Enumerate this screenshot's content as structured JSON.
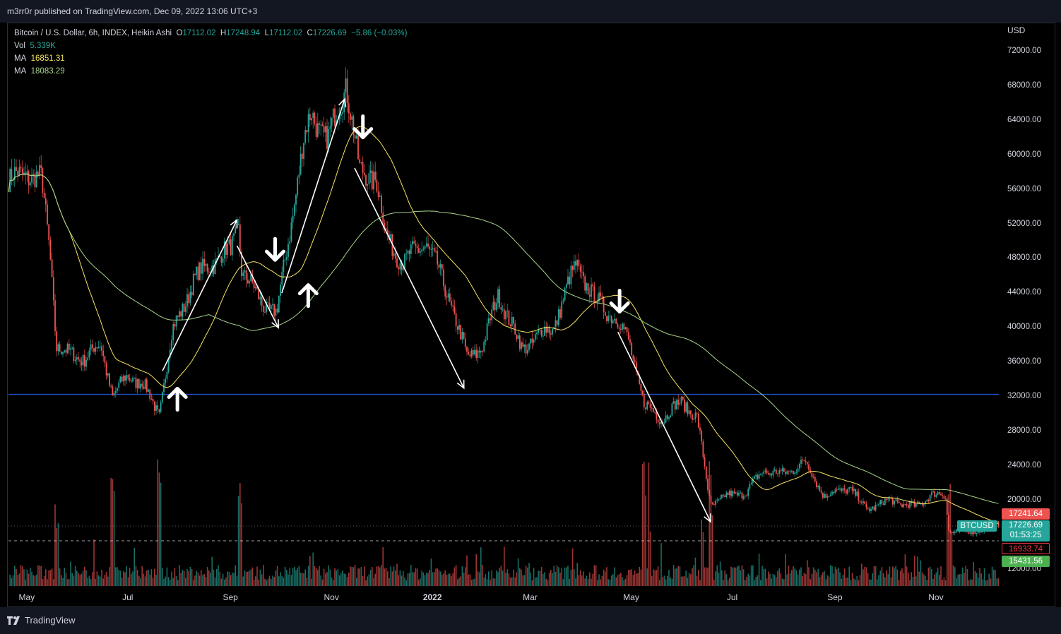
{
  "header": {
    "published": "m3rr0r published on TradingView.com, Dec 09, 2022 13:06 UTC+3"
  },
  "legend": {
    "symbol": "Bitcoin / U.S. Dollar, 6h, INDEX, Heikin Ashi",
    "o_label": "O",
    "o_value": "17112.02",
    "h_label": "H",
    "h_value": "17248.94",
    "l_label": "L",
    "l_value": "17112.02",
    "c_label": "C",
    "c_value": "17226.69",
    "change": "−5.86 (−0.03%)",
    "vol_label": "Vol",
    "vol_value": "5.339K",
    "ma1_label": "MA",
    "ma1_value": "16851.31",
    "ma2_label": "MA",
    "ma2_value": "18083.29"
  },
  "footer": {
    "brand": "TradingView"
  },
  "colors": {
    "up": "#26a69a",
    "down": "#ef5350",
    "ma_fast": "#f5e462",
    "ma_slow": "#a8d48a",
    "hline": "#2962ff"
  },
  "chart_data": {
    "type": "candlestick",
    "currency": "USD",
    "y_ticks": [
      "72000.00",
      "68000.00",
      "64000.00",
      "60000.00",
      "56000.00",
      "52000.00",
      "48000.00",
      "44000.00",
      "40000.00",
      "36000.00",
      "32000.00",
      "28000.00",
      "24000.00",
      "20000.00",
      "12000.00"
    ],
    "x_ticks": [
      "May",
      "Jul",
      "Sep",
      "Nov",
      "2022",
      "Mar",
      "May",
      "Jul",
      "Sep",
      "Nov"
    ],
    "price_tags": {
      "high": "17241.64",
      "symbol": "BTCUSD",
      "last": "17226.69",
      "countdown": "01:53:25",
      "low_line": "16933.74",
      "lower": "15431.56"
    },
    "horizontal_line": 32300,
    "ylim": [
      11000,
      74000
    ],
    "price_path": [
      [
        "2021-04-20",
        57000
      ],
      [
        "2021-05-01",
        58000
      ],
      [
        "2021-05-10",
        57000
      ],
      [
        "2021-05-15",
        49000
      ],
      [
        "2021-05-19",
        38000
      ],
      [
        "2021-05-25",
        37000
      ],
      [
        "2021-06-05",
        36500
      ],
      [
        "2021-06-15",
        38000
      ],
      [
        "2021-06-22",
        32000
      ],
      [
        "2021-07-01",
        34500
      ],
      [
        "2021-07-10",
        33500
      ],
      [
        "2021-07-20",
        30000
      ],
      [
        "2021-07-28",
        39500
      ],
      [
        "2021-08-10",
        45500
      ],
      [
        "2021-08-20",
        47500
      ],
      [
        "2021-09-01",
        49000
      ],
      [
        "2021-09-06",
        52000
      ],
      [
        "2021-09-08",
        46500
      ],
      [
        "2021-09-20",
        43000
      ],
      [
        "2021-09-29",
        41500
      ],
      [
        "2021-10-05",
        49000
      ],
      [
        "2021-10-15",
        61000
      ],
      [
        "2021-10-20",
        65000
      ],
      [
        "2021-10-30",
        61500
      ],
      [
        "2021-11-10",
        68500
      ],
      [
        "2021-11-18",
        58000
      ],
      [
        "2021-11-28",
        57500
      ],
      [
        "2021-12-04",
        50500
      ],
      [
        "2021-12-15",
        47500
      ],
      [
        "2021-12-28",
        50000
      ],
      [
        "2022-01-05",
        46500
      ],
      [
        "2022-01-12",
        43000
      ],
      [
        "2022-01-22",
        36500
      ],
      [
        "2022-02-01",
        38000
      ],
      [
        "2022-02-10",
        44000
      ],
      [
        "2022-02-24",
        37500
      ],
      [
        "2022-03-05",
        39000
      ],
      [
        "2022-03-15",
        40000
      ],
      [
        "2022-03-29",
        47500
      ],
      [
        "2022-04-08",
        43500
      ],
      [
        "2022-04-20",
        41500
      ],
      [
        "2022-04-30",
        38500
      ],
      [
        "2022-05-09",
        31000
      ],
      [
        "2022-05-20",
        29500
      ],
      [
        "2022-06-01",
        31500
      ],
      [
        "2022-06-10",
        29500
      ],
      [
        "2022-06-18",
        19500
      ],
      [
        "2022-06-28",
        20500
      ],
      [
        "2022-07-10",
        21000
      ],
      [
        "2022-07-20",
        23500
      ],
      [
        "2022-08-01",
        23000
      ],
      [
        "2022-08-14",
        24500
      ],
      [
        "2022-08-26",
        20500
      ],
      [
        "2022-09-10",
        21500
      ],
      [
        "2022-09-20",
        19000
      ],
      [
        "2022-10-05",
        20000
      ],
      [
        "2022-10-20",
        19200
      ],
      [
        "2022-10-29",
        20700
      ],
      [
        "2022-11-07",
        20500
      ],
      [
        "2022-11-09",
        16500
      ],
      [
        "2022-11-20",
        16300
      ],
      [
        "2022-12-09",
        17226
      ]
    ],
    "annotations": {
      "trend_arrows": [
        [
          [
            "2021-07-22",
            35000
          ],
          [
            "2021-09-05",
            52500
          ]
        ],
        [
          [
            "2021-09-05",
            49500
          ],
          [
            "2021-09-30",
            40000
          ]
        ],
        [
          [
            "2021-10-02",
            44000
          ],
          [
            "2021-11-09",
            66500
          ]
        ],
        [
          [
            "2021-11-15",
            58500
          ],
          [
            "2022-01-20",
            33000
          ]
        ],
        [
          [
            "2022-04-23",
            39500
          ],
          [
            "2022-06-18",
            17500
          ]
        ]
      ],
      "up_arrows": [
        [
          "2021-07-31",
          31800
        ],
        [
          "2021-10-18",
          43800
        ]
      ],
      "down_arrows": [
        [
          "2021-09-28",
          49000
        ],
        [
          "2021-11-20",
          63200
        ],
        [
          "2022-04-24",
          43000
        ]
      ]
    }
  }
}
